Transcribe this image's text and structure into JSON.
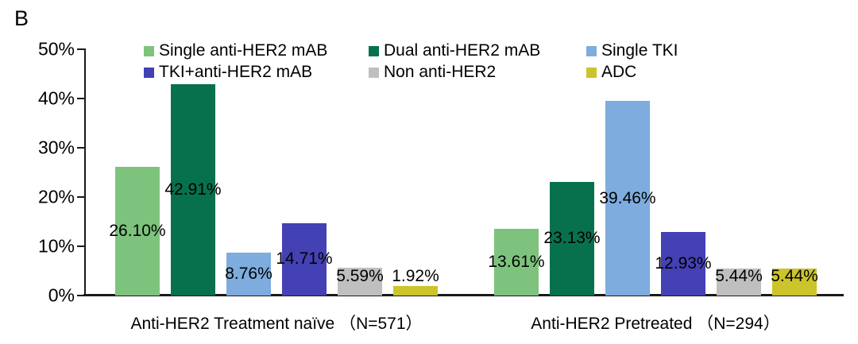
{
  "panel_label": "B",
  "chart_data": {
    "type": "bar",
    "title": "",
    "xlabel": "",
    "ylabel": "",
    "ylim": [
      0,
      50
    ],
    "yticks": [
      "0%",
      "10%",
      "20%",
      "30%",
      "40%",
      "50%"
    ],
    "grid": false,
    "legend_position": "top",
    "categories": [
      "Anti-HER2 Treatment naïve （N=571）",
      "Anti-HER2 Pretreated （N=294）"
    ],
    "series": [
      {
        "name": "Single anti-HER2 mAB",
        "color": "#7DC37E",
        "values": [
          26.1,
          13.61
        ]
      },
      {
        "name": "Dual anti-HER2 mAB",
        "color": "#07714E",
        "values": [
          42.91,
          23.13
        ]
      },
      {
        "name": "Single TKI",
        "color": "#7EACDE",
        "values": [
          8.76,
          39.46
        ]
      },
      {
        "name": "TKI+anti-HER2 mAB",
        "color": "#4341B3",
        "values": [
          14.71,
          12.93
        ]
      },
      {
        "name": "Non anti-HER2",
        "color": "#BFBFBF",
        "values": [
          5.59,
          5.44
        ]
      },
      {
        "name": "ADC",
        "color": "#CCC42B",
        "values": [
          1.92,
          5.44
        ]
      }
    ],
    "data_labels": [
      [
        "26.10%",
        "42.91%",
        "8.76%",
        "14.71%",
        "5.59%",
        "1.92%"
      ],
      [
        "13.61%",
        "23.13%",
        "39.46%",
        "12.93%",
        "5.44%",
        "5.44%"
      ]
    ]
  }
}
